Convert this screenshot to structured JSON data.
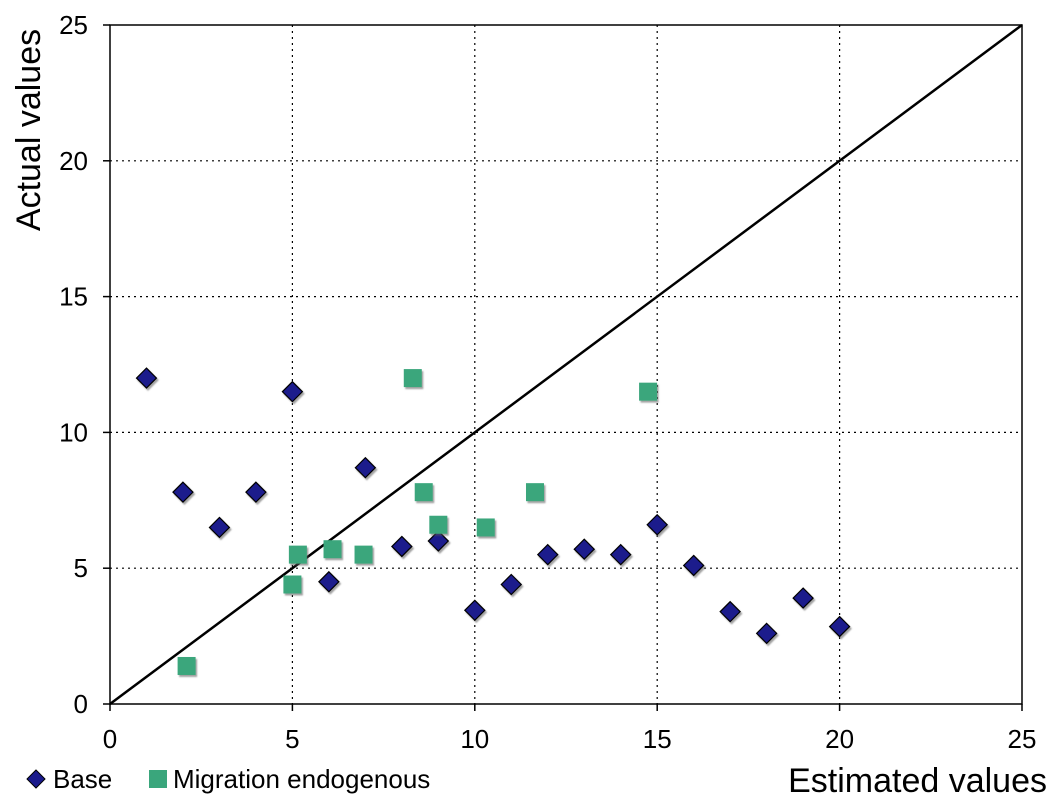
{
  "chart_data": {
    "type": "scatter",
    "xlabel": "Estimated values",
    "ylabel": "Actual values",
    "xlim": [
      0,
      25
    ],
    "ylim": [
      0,
      25
    ],
    "x_ticks": [
      "0",
      "5",
      "10",
      "15",
      "20",
      "25"
    ],
    "y_ticks": [
      "0",
      "5",
      "10",
      "15",
      "20",
      "25"
    ],
    "grid": true,
    "grid_style": "dotted",
    "legend_position": "bottom-left",
    "reference_line": {
      "from": [
        0,
        0
      ],
      "to": [
        25,
        25
      ],
      "color": "#000000"
    },
    "series": [
      {
        "name": "Base",
        "marker": "diamond",
        "color": "#1a1a8c",
        "points": [
          [
            1,
            12.0
          ],
          [
            2,
            7.8
          ],
          [
            3,
            6.5
          ],
          [
            4,
            7.8
          ],
          [
            5,
            11.5
          ],
          [
            6,
            4.5
          ],
          [
            7,
            8.7
          ],
          [
            8,
            5.8
          ],
          [
            9,
            6.0
          ],
          [
            10,
            3.45
          ],
          [
            11,
            4.4
          ],
          [
            12,
            5.5
          ],
          [
            13,
            5.7
          ],
          [
            14,
            5.5
          ],
          [
            15,
            6.6
          ],
          [
            16,
            5.1
          ],
          [
            17,
            3.4
          ],
          [
            18,
            2.6
          ],
          [
            19,
            3.9
          ],
          [
            20,
            2.85
          ]
        ]
      },
      {
        "name": "Migration endogenous",
        "marker": "square",
        "color": "#3aa67c",
        "points": [
          [
            2.1,
            1.4
          ],
          [
            5.0,
            4.4
          ],
          [
            5.15,
            5.5
          ],
          [
            6.1,
            5.7
          ],
          [
            6.95,
            5.5
          ],
          [
            8.3,
            12.0
          ],
          [
            8.6,
            7.8
          ],
          [
            9.0,
            6.6
          ],
          [
            10.3,
            6.5
          ],
          [
            11.65,
            7.8
          ],
          [
            14.75,
            11.5
          ]
        ]
      }
    ]
  }
}
